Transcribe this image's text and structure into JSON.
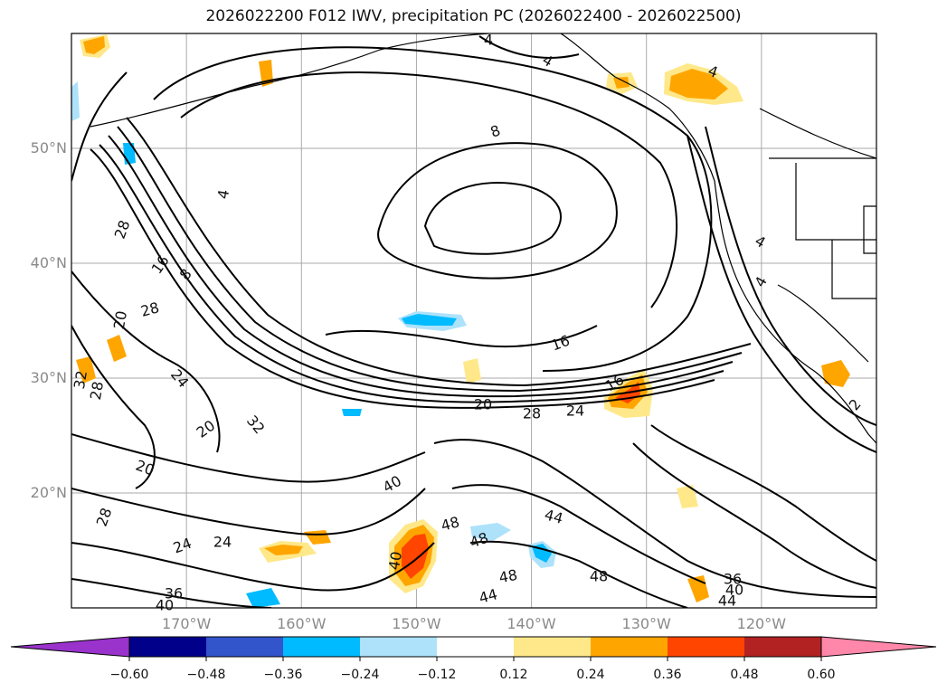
{
  "title": "2026022200 F012 IWV, precipitation PC (2026022400 - 2026022500)",
  "map": {
    "lat_labels": [
      "50°N",
      "40°N",
      "30°N",
      "20°N"
    ],
    "lat_values": [
      50,
      40,
      30,
      20
    ],
    "lon_labels": [
      "170°W",
      "160°W",
      "150°W",
      "140°W",
      "130°W",
      "120°W"
    ],
    "lon_values": [
      -170,
      -160,
      -150,
      -140,
      -130,
      -120
    ],
    "extent": {
      "lon_min": -180,
      "lon_max": -110,
      "lat_min": 10,
      "lat_max": 60
    },
    "contour_labels": [
      "4",
      "4",
      "4",
      "4",
      "4",
      "8",
      "8",
      "16",
      "16",
      "16",
      "20",
      "20",
      "20",
      "20",
      "24",
      "24",
      "24",
      "24",
      "28",
      "28",
      "28",
      "28",
      "28",
      "32",
      "32",
      "36",
      "36",
      "40",
      "40",
      "40",
      "40",
      "44",
      "44",
      "44",
      "48",
      "48",
      "48",
      "48",
      "2",
      "4"
    ],
    "colors": {
      "contour": "#000000",
      "grid": "#aaaaaa",
      "coast": "#000000"
    }
  },
  "colorbar": {
    "tick_labels": [
      "−0.60",
      "−0.48",
      "−0.36",
      "−0.24",
      "−0.12",
      "0.12",
      "0.24",
      "0.36",
      "0.48",
      "0.60"
    ],
    "tick_values": [
      -0.6,
      -0.48,
      -0.36,
      -0.24,
      -0.12,
      0.12,
      0.24,
      0.36,
      0.48,
      0.6
    ],
    "colors": [
      "#9933cc",
      "#00008b",
      "#3355cc",
      "#00bbff",
      "#aee2fa",
      "#ffffff",
      "#ffe88a",
      "#ffa500",
      "#ff4500",
      "#b22222",
      "#ff88aa"
    ]
  }
}
